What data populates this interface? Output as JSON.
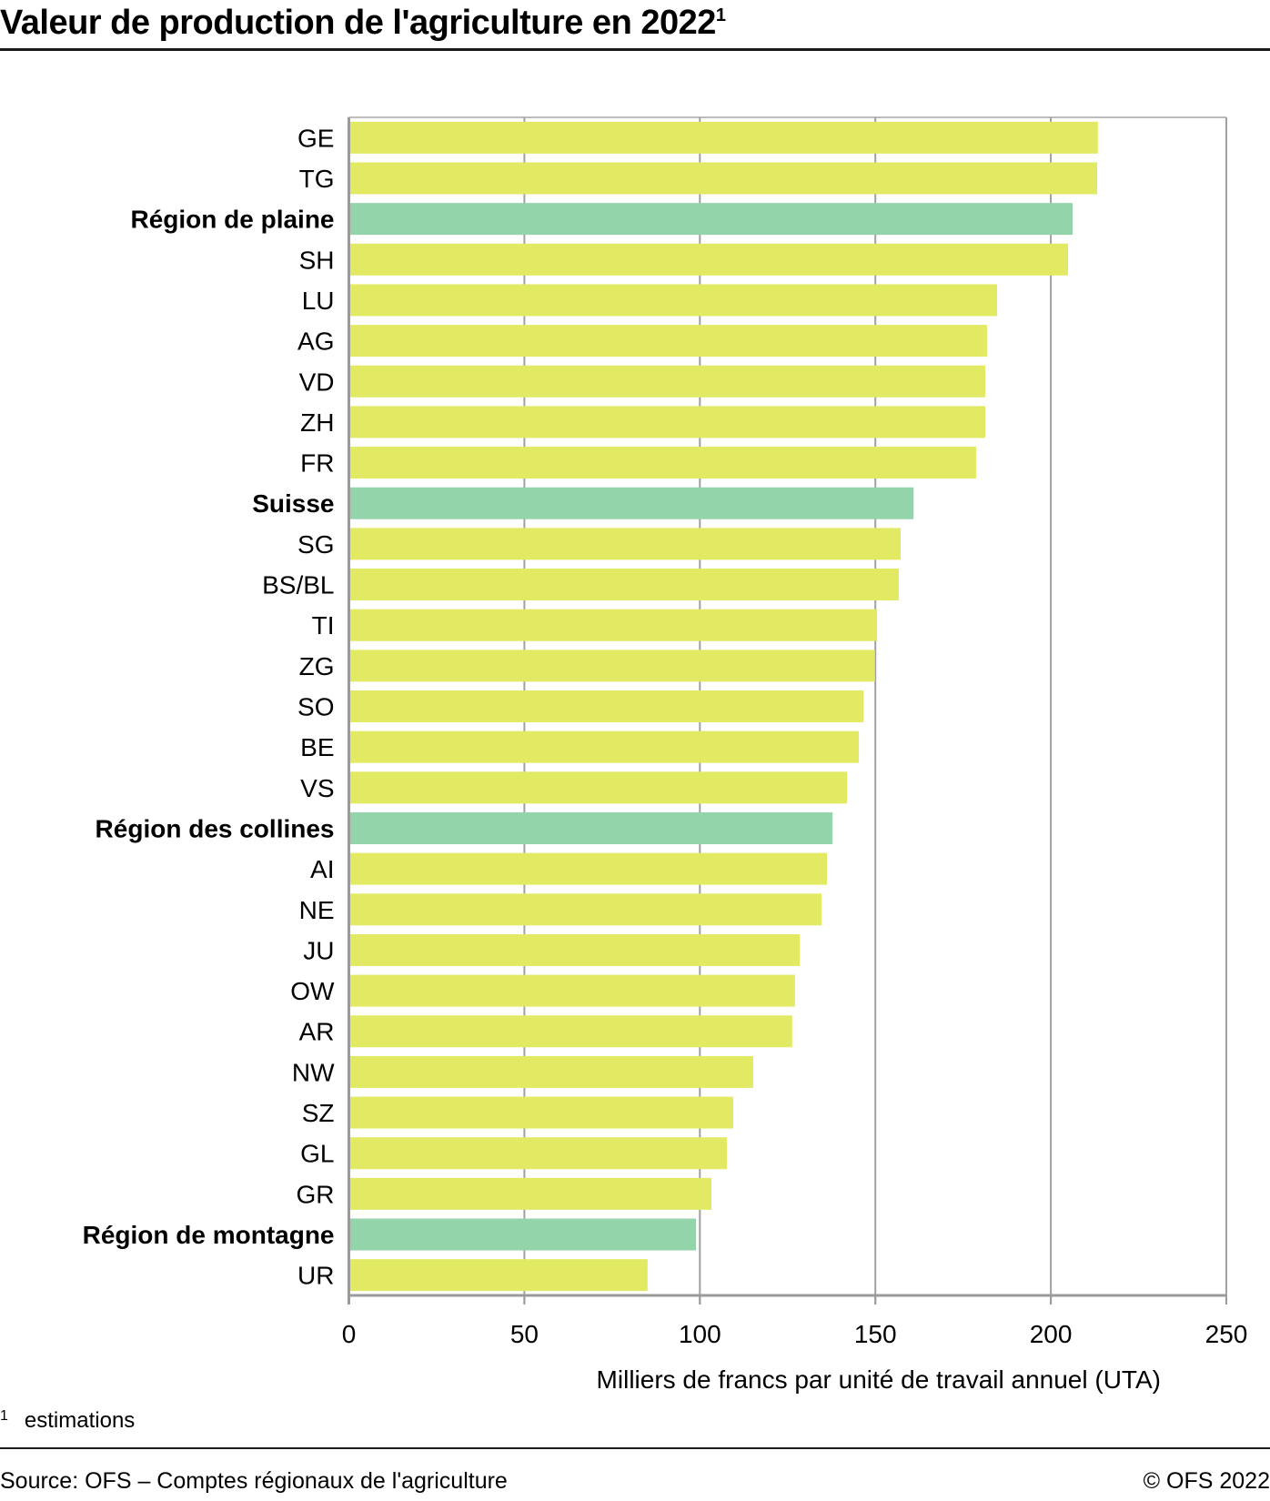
{
  "title": "Valeur de production de l'agriculture en 2022",
  "title_footnote_mark": "1",
  "footnote": {
    "mark": "1",
    "text": "estimations"
  },
  "source": "Source: OFS – Comptes régionaux de l'agriculture",
  "copyright": "© OFS 2022",
  "colors": {
    "canton": "#E1EA62",
    "aggregate": "#93D4AA",
    "grid": "#A0A0A0",
    "axis": "#9A9A9A"
  },
  "chart_data": {
    "type": "bar",
    "orientation": "horizontal",
    "title": "Valeur de production de l'agriculture en 2022",
    "xlabel": "Milliers de francs par unité de travail annuel (UTA)",
    "ylabel": "",
    "xlim": [
      0,
      250
    ],
    "xticks": [
      0,
      50,
      100,
      150,
      200,
      250
    ],
    "grid": true,
    "categories": [
      "GE",
      "TG",
      "Région de plaine",
      "SH",
      "LU",
      "AG",
      "VD",
      "ZH",
      "FR",
      "Suisse",
      "SG",
      "BS/BL",
      "TI",
      "ZG",
      "SO",
      "BE",
      "VS",
      "Région des collines",
      "AI",
      "NE",
      "JU",
      "OW",
      "AR",
      "NW",
      "SZ",
      "GL",
      "GR",
      "Région de montagne",
      "UR"
    ],
    "values": [
      213.4,
      213.2,
      206.2,
      204.9,
      184.7,
      181.8,
      181.3,
      181.3,
      178.7,
      160.9,
      157.2,
      156.7,
      150.5,
      149.9,
      146.6,
      145.3,
      141.9,
      137.8,
      136.2,
      134.7,
      128.5,
      127.1,
      126.3,
      115.2,
      109.5,
      107.7,
      103.3,
      98.9,
      85.1
    ],
    "aggregate": [
      false,
      false,
      true,
      false,
      false,
      false,
      false,
      false,
      false,
      true,
      false,
      false,
      false,
      false,
      false,
      false,
      false,
      true,
      false,
      false,
      false,
      false,
      false,
      false,
      false,
      false,
      false,
      true,
      false
    ]
  }
}
